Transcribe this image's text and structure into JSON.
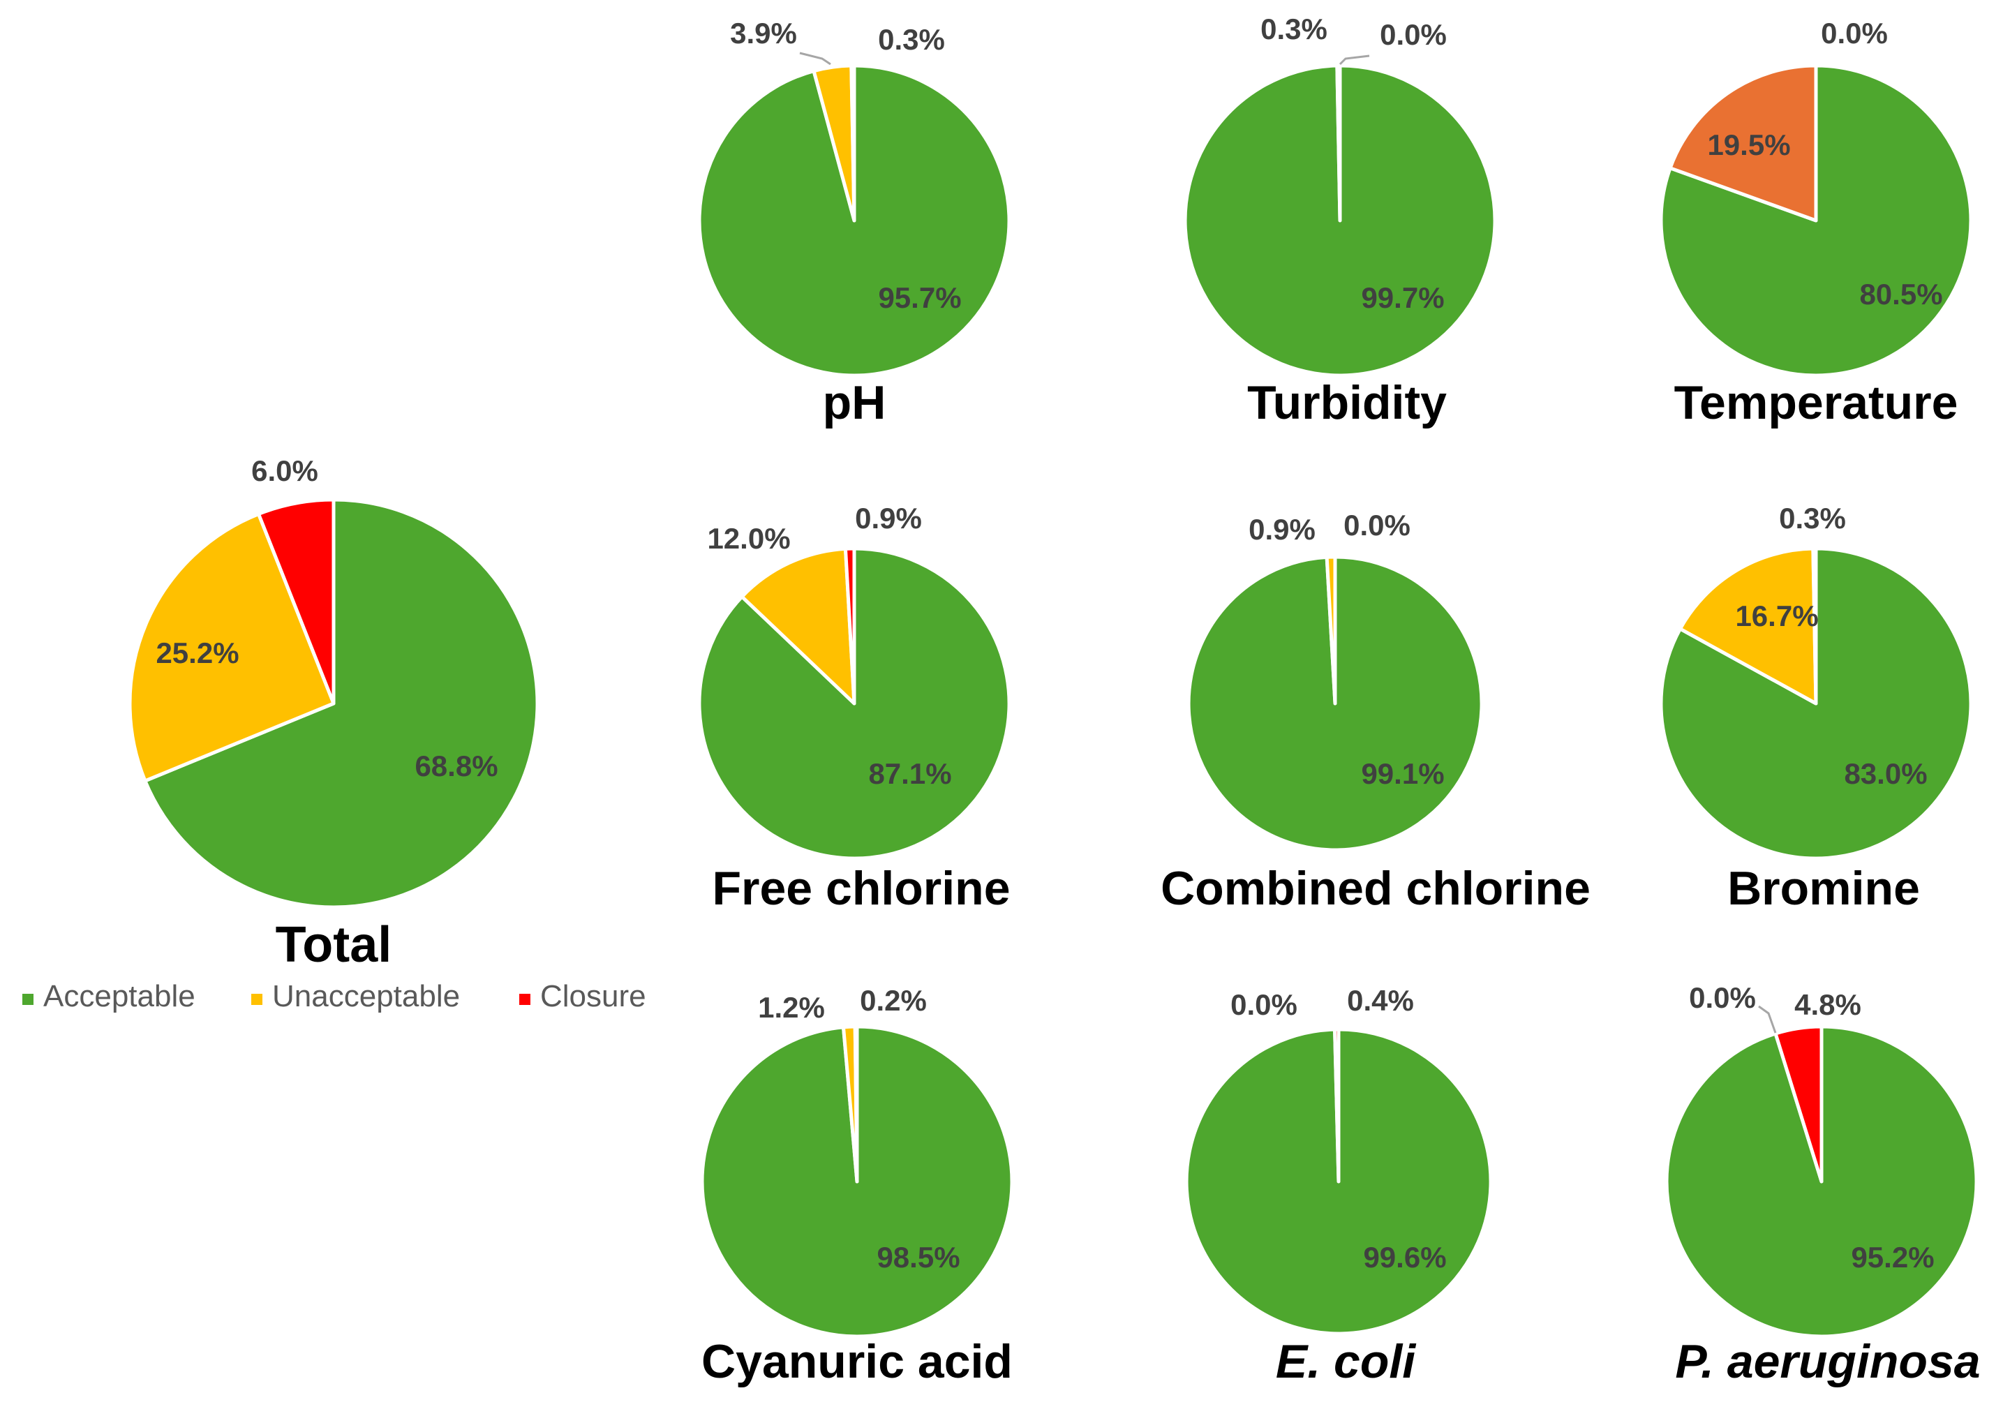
{
  "categories": [
    "Acceptable",
    "Unacceptable",
    "Closure"
  ],
  "colors": {
    "Acceptable": "#4ea72e",
    "Unacceptable": "#ffc000",
    "Closure": "#ff0000",
    "Temperature_unacceptable": "#e97132"
  },
  "chart_data": [
    {
      "id": "total",
      "type": "pie",
      "title": "Total",
      "italic": false,
      "slices": [
        {
          "category": "Acceptable",
          "value": 68.8,
          "label": "68.8%"
        },
        {
          "category": "Unacceptable",
          "value": 25.2,
          "label": "25.2%"
        },
        {
          "category": "Closure",
          "value": 6.0,
          "label": "6.0%"
        }
      ]
    },
    {
      "id": "ph",
      "type": "pie",
      "title": "pH",
      "italic": false,
      "slices": [
        {
          "category": "Acceptable",
          "value": 95.7,
          "label": "95.7%"
        },
        {
          "category": "Unacceptable",
          "value": 3.9,
          "label": "3.9%"
        },
        {
          "category": "Closure",
          "value": 0.3,
          "label": "0.3%"
        }
      ]
    },
    {
      "id": "turbidity",
      "type": "pie",
      "title": "Turbidity",
      "italic": false,
      "slices": [
        {
          "category": "Acceptable",
          "value": 99.7,
          "label": "99.7%"
        },
        {
          "category": "Unacceptable",
          "value": 0.3,
          "label": "0.3%"
        },
        {
          "category": "Closure",
          "value": 0.0,
          "label": "0.0%"
        }
      ]
    },
    {
      "id": "temperature",
      "type": "pie",
      "title": "Temperature",
      "italic": false,
      "slices": [
        {
          "category": "Acceptable",
          "value": 80.5,
          "label": "80.5%"
        },
        {
          "category": "Unacceptable",
          "value": 19.5,
          "label": "19.5%",
          "color": "#e97132"
        },
        {
          "category": "Closure",
          "value": 0.0,
          "label": "0.0%"
        }
      ]
    },
    {
      "id": "free-chlorine",
      "type": "pie",
      "title": "Free chlorine",
      "italic": false,
      "slices": [
        {
          "category": "Acceptable",
          "value": 87.1,
          "label": "87.1%"
        },
        {
          "category": "Unacceptable",
          "value": 12.0,
          "label": "12.0%"
        },
        {
          "category": "Closure",
          "value": 0.9,
          "label": "0.9%"
        }
      ]
    },
    {
      "id": "combined-chlorine",
      "type": "pie",
      "title": "Combined chlorine",
      "italic": false,
      "slices": [
        {
          "category": "Acceptable",
          "value": 99.1,
          "label": "99.1%"
        },
        {
          "category": "Unacceptable",
          "value": 0.9,
          "label": "0.9%"
        },
        {
          "category": "Closure",
          "value": 0.0,
          "label": "0.0%"
        }
      ]
    },
    {
      "id": "bromine",
      "type": "pie",
      "title": "Bromine",
      "italic": false,
      "slices": [
        {
          "category": "Acceptable",
          "value": 83.0,
          "label": "83.0%"
        },
        {
          "category": "Unacceptable",
          "value": 16.7,
          "label": "16.7%"
        },
        {
          "category": "Closure",
          "value": 0.3,
          "label": "0.3%"
        }
      ]
    },
    {
      "id": "cyanuric-acid",
      "type": "pie",
      "title": "Cyanuric acid",
      "italic": false,
      "slices": [
        {
          "category": "Acceptable",
          "value": 98.5,
          "label": "98.5%"
        },
        {
          "category": "Unacceptable",
          "value": 1.2,
          "label": "1.2%"
        },
        {
          "category": "Closure",
          "value": 0.2,
          "label": "0.2%"
        }
      ]
    },
    {
      "id": "e-coli",
      "type": "pie",
      "title": "E. coli",
      "italic": true,
      "slices": [
        {
          "category": "Acceptable",
          "value": 99.6,
          "label": "99.6%"
        },
        {
          "category": "Unacceptable",
          "value": 0.0,
          "label": "0.0%"
        },
        {
          "category": "Closure",
          "value": 0.4,
          "label": "0.4%"
        }
      ]
    },
    {
      "id": "p-aeruginosa",
      "type": "pie",
      "title": "P. aeruginosa",
      "italic": true,
      "slices": [
        {
          "category": "Acceptable",
          "value": 95.2,
          "label": "95.2%"
        },
        {
          "category": "Unacceptable",
          "value": 0.0,
          "label": "0.0%"
        },
        {
          "category": "Closure",
          "value": 4.8,
          "label": "4.8%"
        }
      ]
    }
  ]
}
